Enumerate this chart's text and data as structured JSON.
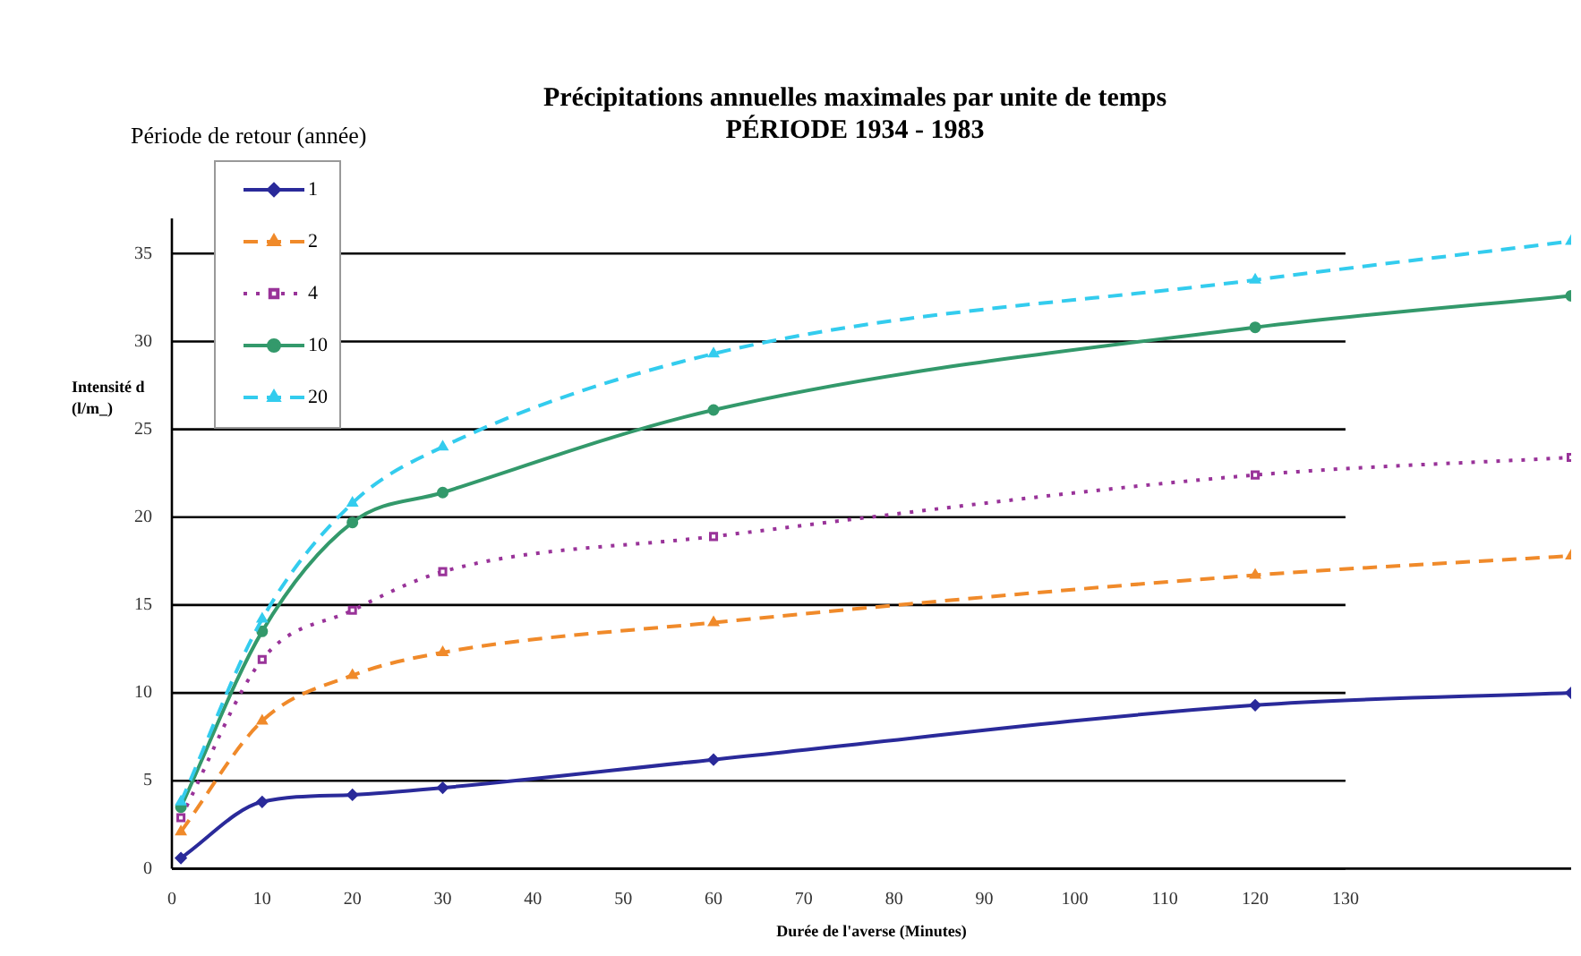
{
  "chart_data": {
    "type": "line",
    "title": "Précipitations annuelles maximales par unite de temps",
    "subtitle": "PÉRIODE 1934 - 1983",
    "xlabel": "Durée de l'averse (Minutes)",
    "ylabel": "Intensité d (l/m_)",
    "legend_title": "Période de retour (année)",
    "x": [
      1,
      10,
      20,
      30,
      60,
      120,
      155
    ],
    "series": [
      {
        "name": "1",
        "color": "#2a2a9a",
        "marker": "diamond",
        "line_style": "solid",
        "values": [
          0.6,
          3.8,
          4.2,
          4.6,
          6.2,
          9.3,
          10.0
        ]
      },
      {
        "name": "2",
        "color": "#f08a2a",
        "marker": "triangle",
        "line_style": "dashed",
        "values": [
          2.1,
          8.4,
          11.0,
          12.3,
          14.0,
          16.7,
          17.8
        ]
      },
      {
        "name": "4",
        "color": "#993399",
        "marker": "square",
        "line_style": "dotted",
        "values": [
          2.9,
          11.9,
          14.7,
          16.9,
          18.9,
          22.4,
          23.4
        ]
      },
      {
        "name": "10",
        "color": "#33996b",
        "marker": "circle",
        "line_style": "solid",
        "values": [
          3.5,
          13.5,
          19.7,
          21.4,
          26.1,
          30.8,
          32.6
        ]
      },
      {
        "name": "20",
        "color": "#33ccee",
        "marker": "triangle",
        "line_style": "dashed",
        "values": [
          3.8,
          14.2,
          20.8,
          24.0,
          29.3,
          33.5,
          35.7
        ]
      }
    ],
    "xlim": [
      0,
      155
    ],
    "xticks": [
      0,
      10,
      20,
      30,
      40,
      50,
      60,
      70,
      80,
      90,
      100,
      110,
      120,
      130
    ],
    "ylim": [
      0,
      37
    ],
    "yticks": [
      0,
      5,
      10,
      15,
      20,
      25,
      30,
      35
    ],
    "grid": "y",
    "legend": "top left"
  }
}
